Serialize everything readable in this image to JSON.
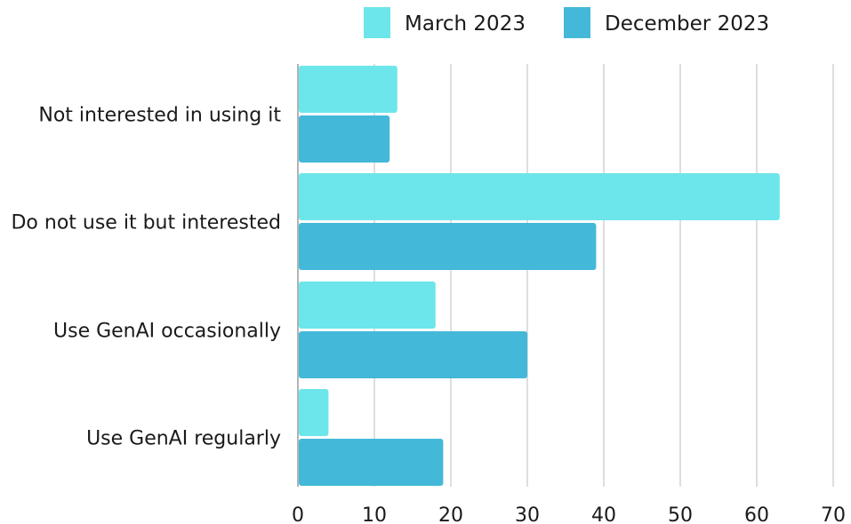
{
  "chart_data": {
    "type": "bar",
    "orientation": "horizontal",
    "categories": [
      "Not interested in using it",
      "Do not use it but interested",
      "Use GenAI occasionally",
      "Use GenAI regularly"
    ],
    "series": [
      {
        "name": "March 2023",
        "color": "#6ce6ea",
        "values": [
          13,
          63,
          18,
          4
        ]
      },
      {
        "name": "December 2023",
        "color": "#44b8d8",
        "values": [
          12,
          39,
          30,
          19
        ]
      }
    ],
    "xlim": [
      0,
      70
    ],
    "xticks": [
      "0",
      "10",
      "20",
      "30",
      "40",
      "50",
      "60",
      "70"
    ],
    "grid": true,
    "legend_position": "top-right"
  }
}
